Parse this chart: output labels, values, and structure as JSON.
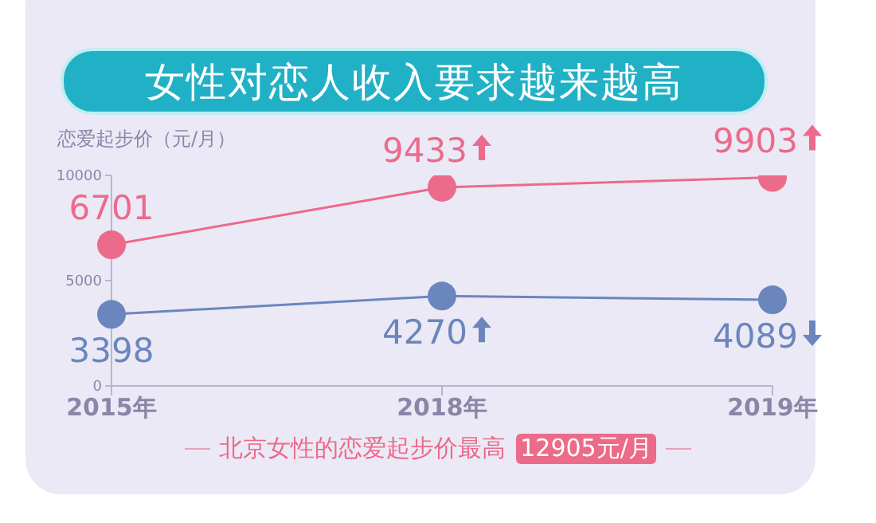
{
  "chart_data": {
    "type": "line",
    "title": "女性对恋人收入要求越来越高",
    "ylabel": "恋爱起步价（元/月）",
    "categories": [
      "2015年",
      "2018年",
      "2019年"
    ],
    "series": [
      {
        "color": "#ec6a8a",
        "values": [
          6701,
          9433,
          9903
        ]
      },
      {
        "color": "#6a86bd",
        "values": [
          3398,
          4270,
          4089
        ]
      }
    ],
    "ylim": [
      0,
      10000
    ],
    "yticks": [
      0,
      5000,
      10000
    ],
    "grid": false,
    "legend": false,
    "marker": "circle",
    "line_style": "solid",
    "data_labels": true,
    "annotations": [
      "北京女性的恋爱起步价最高",
      "12905元/月"
    ]
  }
}
